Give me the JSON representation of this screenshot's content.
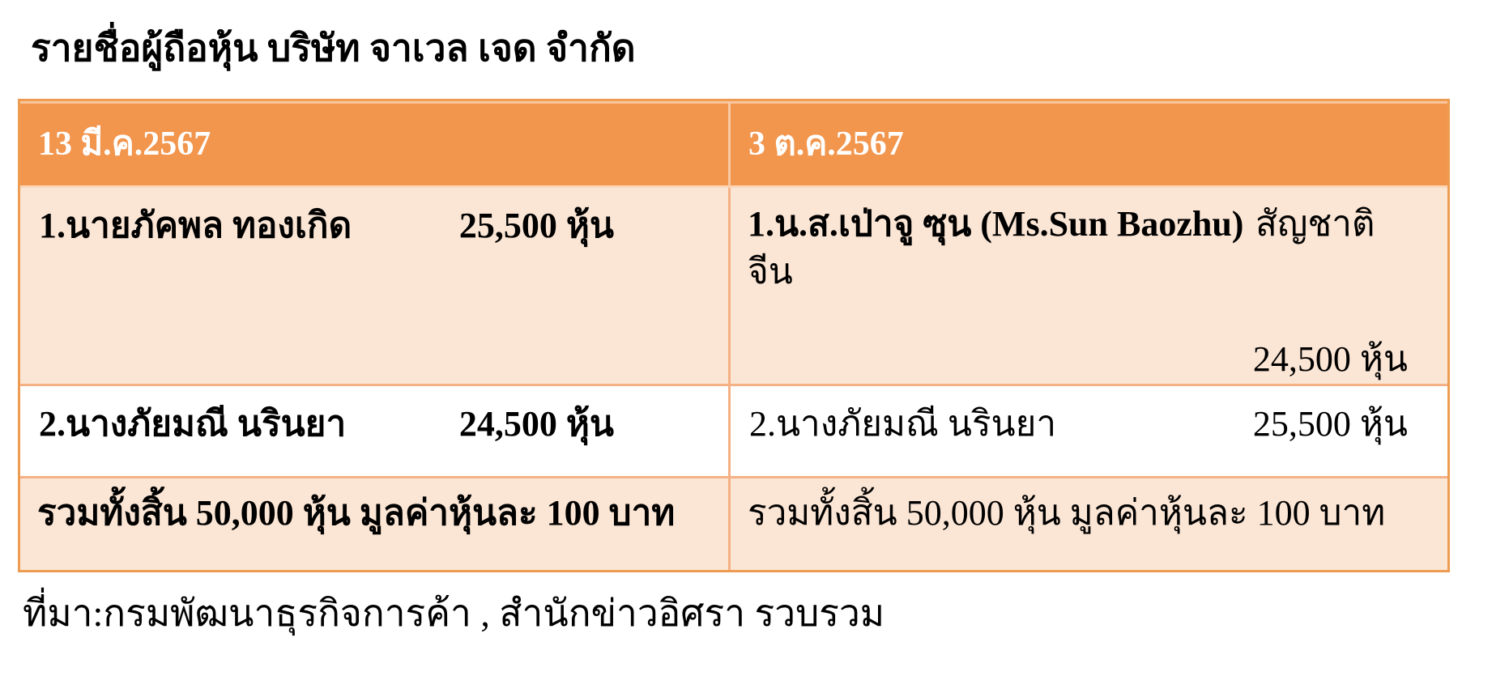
{
  "title": "รายชื่อผู้ถือหุ้น บริษัท จาเวล เจด จำกัด",
  "source": "ที่มา:กรมพัฒนาธุรกิจการค้า , สำนักข่าวอิศรา รวบรวม",
  "colors": {
    "header_bg": "#F2954D",
    "band_bg": "#FBE5D4",
    "white_bg": "#FFFFFF",
    "grid_border": "#F5B183",
    "outer_border": "#EE9C52",
    "header_text": "#FFFFFF",
    "body_text": "#000000"
  },
  "table": {
    "col_headers": [
      "13 มี.ค.2567",
      "3 ต.ค.2567"
    ],
    "rows": [
      {
        "left_name": "1.นายภัคพล ทองเกิด",
        "left_shares": "25,500 หุ้น",
        "right_name_bold": "1.น.ส.เป่าจู ซุน (Ms.Sun Baozhu)",
        "right_name_regular": "สัญชาติจีน",
        "right_shares": "24,500 หุ้น"
      },
      {
        "left_name": "2.นางภัยมณี นรินยา",
        "left_shares": "24,500 หุ้น",
        "right_name": "2.นางภัยมณี นรินยา",
        "right_shares": "25,500 หุ้น"
      },
      {
        "left_summary": "รวมทั้งสิ้น 50,000 หุ้น มูลค่าหุ้นละ 100 บาท",
        "right_summary": "รวมทั้งสิ้น 50,000 หุ้น มูลค่าหุ้นละ 100 บาท"
      }
    ]
  }
}
